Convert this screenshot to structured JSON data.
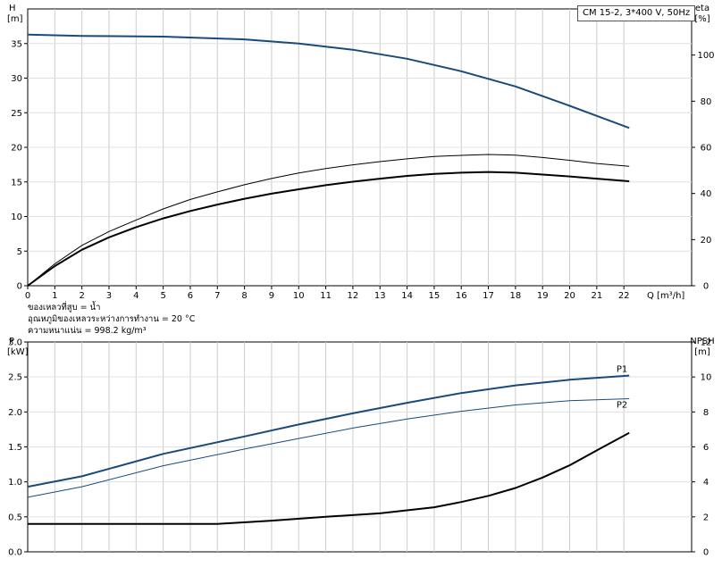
{
  "chart_data": [
    {
      "type": "line",
      "title": "CM 15-2, 3*400 V, 50Hz",
      "xlabel": "Q [m³/h]",
      "ylabel": "H\n[m]",
      "ylabel_right": "eta\n[%]",
      "xlim": [
        0,
        24.5
      ],
      "ylim": [
        0,
        40
      ],
      "ylim_right": [
        0,
        120
      ],
      "x_ticks": [
        0,
        1,
        2,
        3,
        4,
        5,
        6,
        7,
        8,
        9,
        10,
        11,
        12,
        13,
        14,
        15,
        16,
        17,
        18,
        19,
        20,
        21,
        22
      ],
      "y_ticks": [
        0,
        5,
        10,
        15,
        20,
        25,
        30,
        35
      ],
      "y_ticks_right": [
        0,
        20,
        40,
        60,
        80,
        100
      ],
      "grid": true,
      "notes": [
        "ของเหลวที่สูบ = น้ำ",
        "อุณหภูมิของเหลวระหว่างการทำงาน = 20 °C",
        "ความหนาแน่น = 998.2 kg/m³"
      ],
      "series": [
        {
          "axis": "left",
          "color": "#1a4a7a",
          "width": 2,
          "x": [
            0,
            2,
            5,
            8,
            10,
            12,
            14,
            16,
            18,
            20,
            22.2
          ],
          "y": [
            36.3,
            36.1,
            36.0,
            35.6,
            35.0,
            34.1,
            32.8,
            31.0,
            28.8,
            26.0,
            22.8
          ]
        },
        {
          "axis": "right",
          "color": "#000000",
          "width": 1,
          "x": [
            0,
            1,
            2,
            3,
            4,
            5,
            6,
            7,
            8,
            9,
            10,
            11,
            12,
            13,
            14,
            15,
            16,
            17,
            18,
            19,
            20,
            21,
            22.2
          ],
          "y": [
            0,
            9.5,
            17.5,
            23.5,
            28.5,
            33.3,
            37.4,
            40.7,
            43.8,
            46.5,
            48.9,
            50.8,
            52.4,
            53.8,
            55.0,
            56.0,
            56.5,
            56.9,
            56.6,
            55.6,
            54.4,
            53.0,
            51.8
          ]
        },
        {
          "axis": "right",
          "color": "#000000",
          "width": 2,
          "x": [
            0,
            1,
            2,
            3,
            4,
            5,
            6,
            7,
            8,
            9,
            10,
            11,
            12,
            13,
            14,
            15,
            16,
            17,
            18,
            19,
            20,
            21,
            22.2
          ],
          "y": [
            0,
            8.5,
            15.6,
            21.0,
            25.4,
            29.2,
            32.4,
            35.2,
            37.7,
            39.9,
            41.8,
            43.6,
            45.1,
            46.4,
            47.6,
            48.5,
            49.0,
            49.3,
            49.0,
            48.2,
            47.4,
            46.4,
            45.3
          ]
        }
      ]
    },
    {
      "type": "line",
      "xlabel": "",
      "ylabel": "P\n[kW]",
      "ylabel_right": "NPSH\n[m]",
      "xlim": [
        0,
        24.5
      ],
      "ylim": [
        0,
        3.0
      ],
      "ylim_right": [
        0,
        12
      ],
      "y_ticks": [
        0,
        0.5,
        1.0,
        1.5,
        2.0,
        2.5,
        3.0
      ],
      "y_ticks_right": [
        0,
        2,
        4,
        6,
        8,
        10,
        12
      ],
      "grid": true,
      "series": [
        {
          "name": "P1",
          "axis": "left",
          "color": "#1a4a7a",
          "width": 2,
          "x": [
            0,
            2,
            5,
            8,
            10,
            12,
            14,
            16,
            18,
            20,
            22.2
          ],
          "y": [
            0.93,
            1.08,
            1.4,
            1.65,
            1.82,
            1.98,
            2.13,
            2.27,
            2.38,
            2.46,
            2.52
          ]
        },
        {
          "name": "P2",
          "axis": "left",
          "color": "#1a4a7a",
          "width": 1,
          "x": [
            0,
            2,
            5,
            8,
            10,
            12,
            14,
            16,
            18,
            20,
            22.2
          ],
          "y": [
            0.78,
            0.93,
            1.23,
            1.47,
            1.62,
            1.77,
            1.9,
            2.01,
            2.1,
            2.16,
            2.19
          ]
        },
        {
          "axis": "right",
          "color": "#000000",
          "width": 2,
          "x": [
            0,
            5,
            7,
            9,
            11,
            13,
            15,
            16,
            17,
            18,
            19,
            20,
            21,
            22.2
          ],
          "y": [
            1.6,
            1.6,
            1.6,
            1.78,
            2.0,
            2.2,
            2.55,
            2.85,
            3.2,
            3.65,
            4.25,
            4.95,
            5.8,
            6.8
          ]
        }
      ]
    }
  ]
}
